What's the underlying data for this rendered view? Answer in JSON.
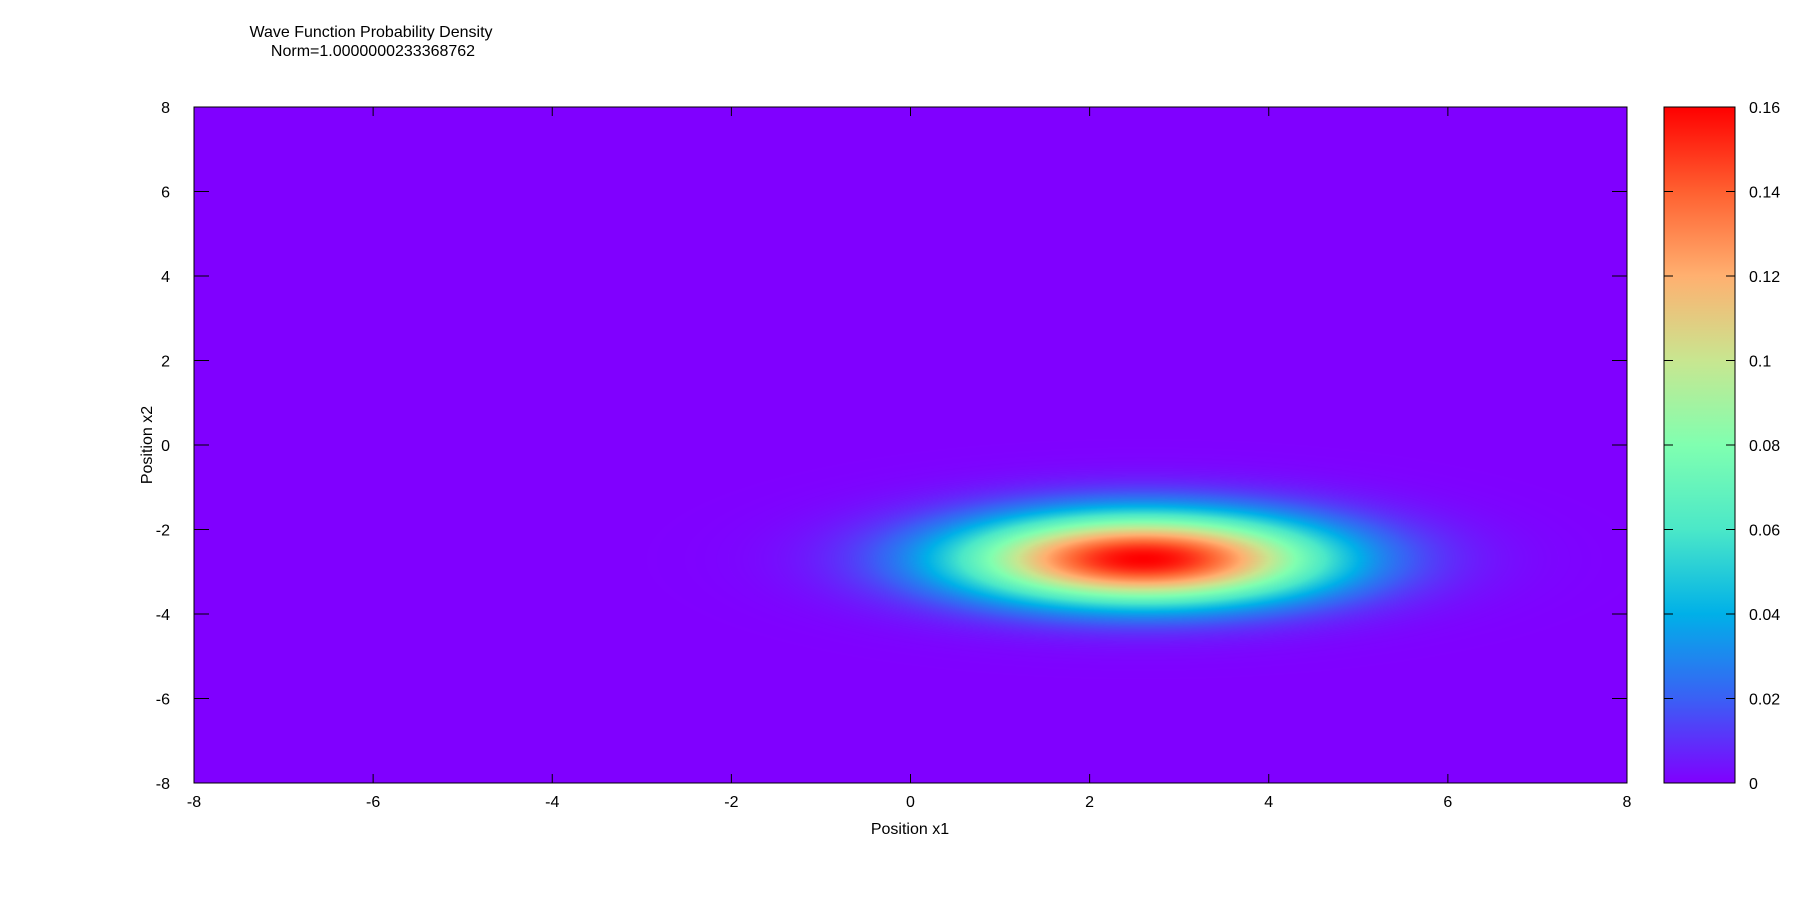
{
  "chart_data": {
    "type": "heatmap",
    "title": "Wave Function Probability Density",
    "subtitle": "Norm=1.0000000233368762",
    "xlabel": "Position x1",
    "ylabel": "Position x2",
    "xlim": [
      -8,
      8
    ],
    "ylim": [
      -8,
      8
    ],
    "x_ticks": [
      "-8",
      "-6",
      "-4",
      "-2",
      "0",
      "2",
      "4",
      "6",
      "8"
    ],
    "y_ticks": [
      "-8",
      "-6",
      "-4",
      "-2",
      "0",
      "2",
      "4",
      "6",
      "8"
    ],
    "grid": false,
    "colorbar": {
      "range": [
        0,
        0.16
      ],
      "ticks": [
        "0",
        "0.02",
        "0.04",
        "0.06",
        "0.08",
        "0.1",
        "0.12",
        "0.14",
        "0.16"
      ],
      "colormap": "rainbow",
      "colors": [
        "#8000ff",
        "#3a60f5",
        "#00b0e8",
        "#4be8c8",
        "#80ffb0",
        "#c8e690",
        "#ffb070",
        "#ff6030",
        "#ff0000"
      ]
    },
    "peak": {
      "x1": 2.6,
      "x2": -2.7,
      "value": 0.16,
      "sigma_x1": 1.45,
      "sigma_x2": 0.75
    }
  }
}
